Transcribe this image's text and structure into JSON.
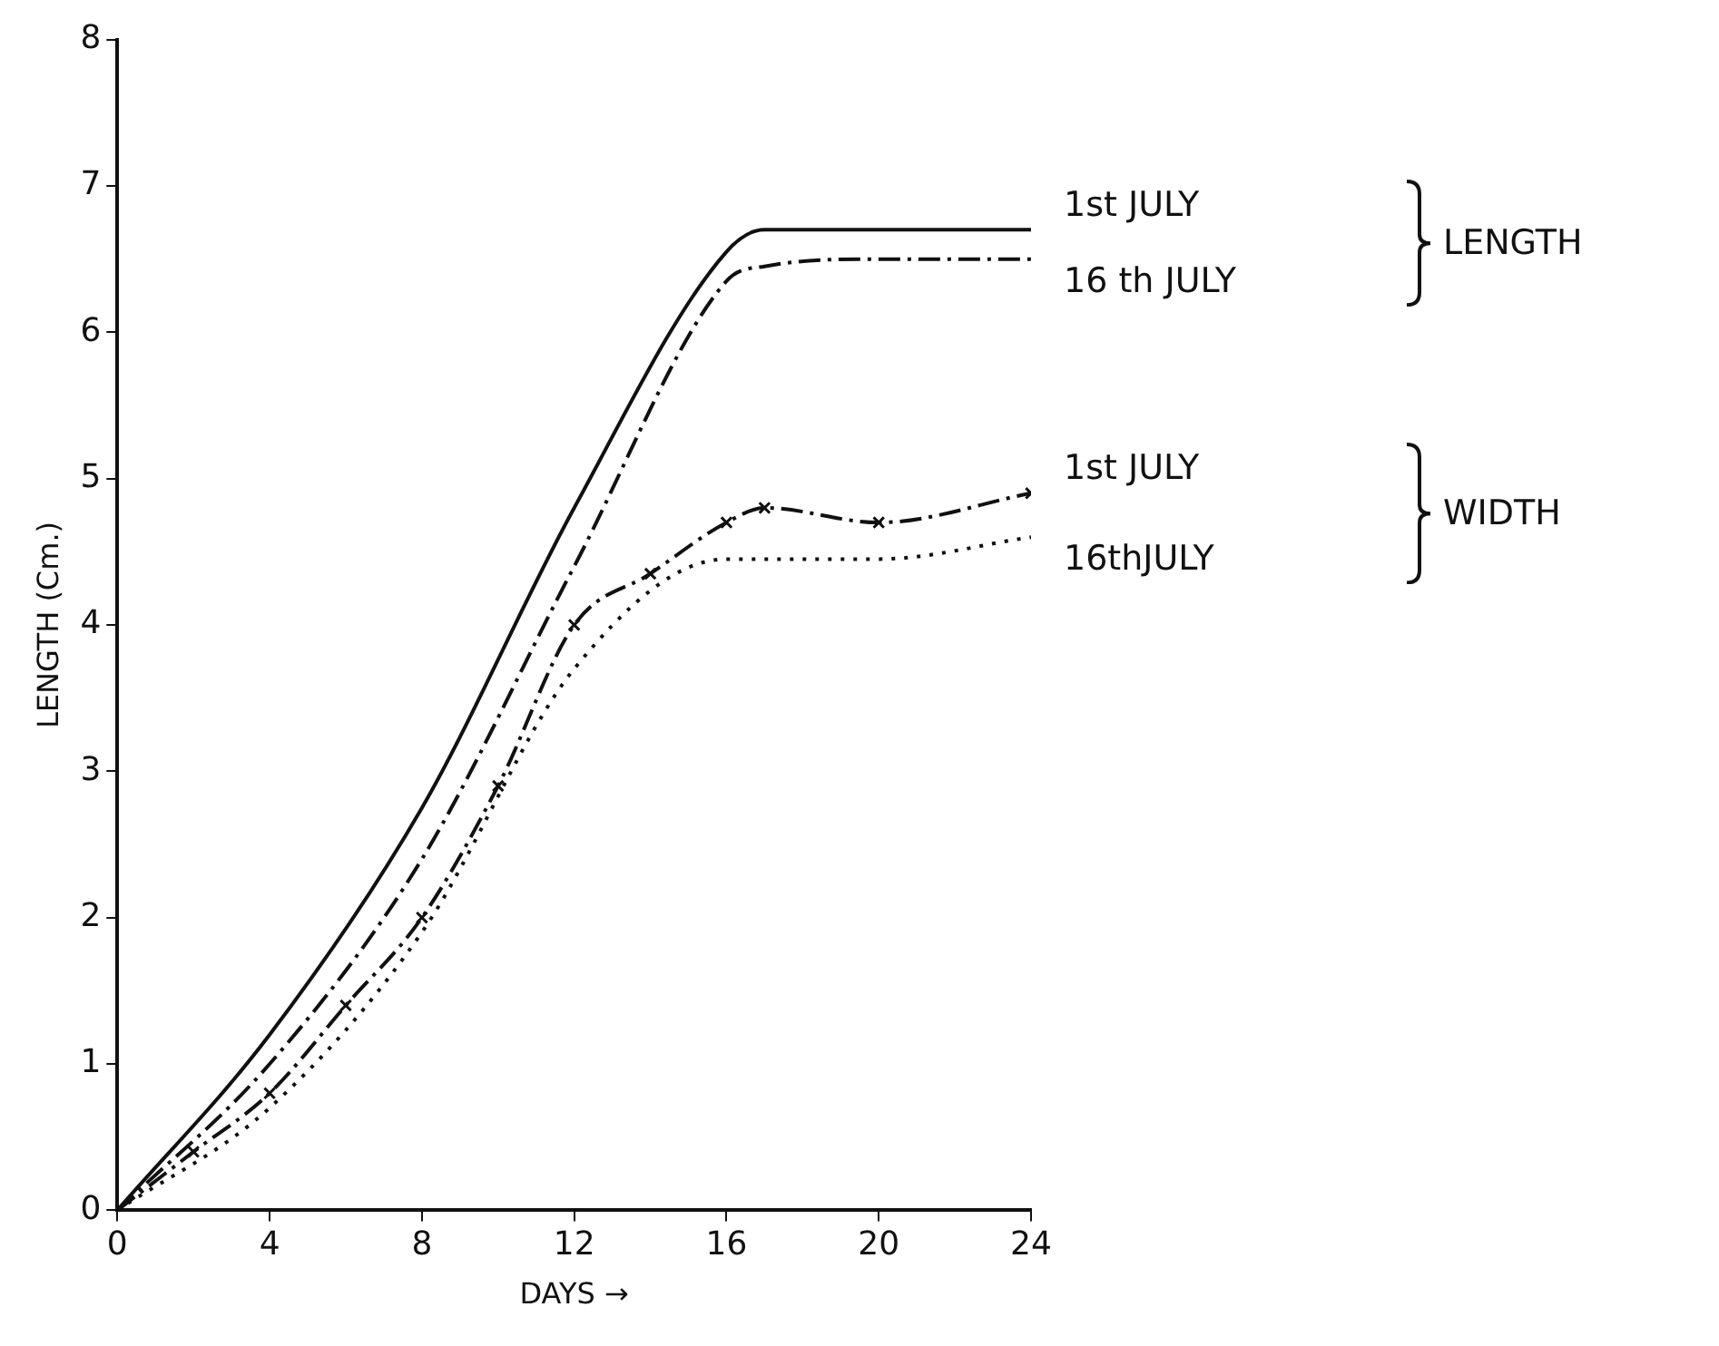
{
  "chart_data": {
    "type": "line",
    "xlabel": "DAYS →",
    "ylabel": "LENGTH (Cm.)",
    "xlim": [
      0,
      24
    ],
    "xticks": [
      0,
      4,
      8,
      12,
      16,
      20,
      24
    ],
    "ylim": [
      0,
      8
    ],
    "yticks": [
      0,
      1,
      2,
      3,
      4,
      5,
      6,
      7,
      8
    ],
    "grid": false,
    "legend": false,
    "annotations": [
      "LENGTH",
      "WIDTH"
    ],
    "series": [
      {
        "name": "1st JULY",
        "color": "#111111",
        "line_style": "solid",
        "marker": "none",
        "x": [
          0,
          4,
          8,
          12,
          16,
          17,
          20,
          24
        ],
        "values": [
          0,
          1.2,
          2.75,
          4.8,
          6.55,
          6.7,
          6.7,
          6.7
        ]
      },
      {
        "name": "16 th JULY",
        "color": "#111111",
        "line_style": "dashed",
        "marker": "none",
        "x": [
          0,
          4,
          8,
          12,
          16,
          17,
          20,
          24
        ],
        "values": [
          0,
          1.0,
          2.4,
          4.4,
          6.35,
          6.45,
          6.5,
          6.5
        ]
      },
      {
        "name": "1st JULY",
        "color": "#111111",
        "line_style": "dashed",
        "marker": "cross",
        "x": [
          0,
          2,
          4,
          6,
          8,
          10,
          12,
          14,
          16,
          17,
          20,
          24
        ],
        "values": [
          0,
          0.4,
          0.8,
          1.4,
          2.0,
          2.9,
          4.0,
          4.35,
          4.7,
          4.8,
          4.7,
          4.9
        ]
      },
      {
        "name": "16thJULY",
        "color": "#111111",
        "line_style": "dotted",
        "marker": "none",
        "x": [
          0,
          4,
          8,
          12,
          16,
          20,
          24
        ],
        "values": [
          0,
          0.7,
          1.9,
          3.7,
          4.45,
          4.45,
          4.6
        ]
      }
    ]
  }
}
